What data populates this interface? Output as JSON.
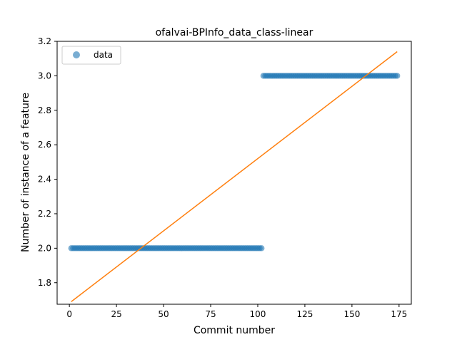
{
  "chart_data": {
    "type": "scatter",
    "title": "ofalvai-BPInfo_data_class-linear",
    "xlabel": "Commit number",
    "ylabel": "Number of instance of a feature",
    "xlim": [
      -6.5,
      181.5
    ],
    "ylim": [
      1.675,
      3.2
    ],
    "xticks": [
      0,
      25,
      50,
      75,
      100,
      125,
      150,
      175
    ],
    "yticks": [
      1.8,
      2.0,
      2.2,
      2.4,
      2.6,
      2.8,
      3.0,
      3.2
    ],
    "xtick_labels": [
      "0",
      "25",
      "50",
      "75",
      "100",
      "125",
      "150",
      "175"
    ],
    "ytick_labels": [
      "1.8",
      "2.0",
      "2.2",
      "2.4",
      "2.6",
      "2.8",
      "3.0",
      "3.2"
    ],
    "grid": false,
    "legend_position": "upper-left",
    "series": [
      {
        "name": "data",
        "kind": "points",
        "color": "#1f77b4",
        "segments": [
          {
            "x_start": 1,
            "x_end": 102,
            "y": 2.0
          },
          {
            "x_start": 103,
            "x_end": 174,
            "y": 3.0
          }
        ]
      },
      {
        "kind": "line",
        "color": "#ff7f0e",
        "x": [
          1,
          174
        ],
        "y": [
          1.69,
          3.14
        ]
      }
    ]
  }
}
